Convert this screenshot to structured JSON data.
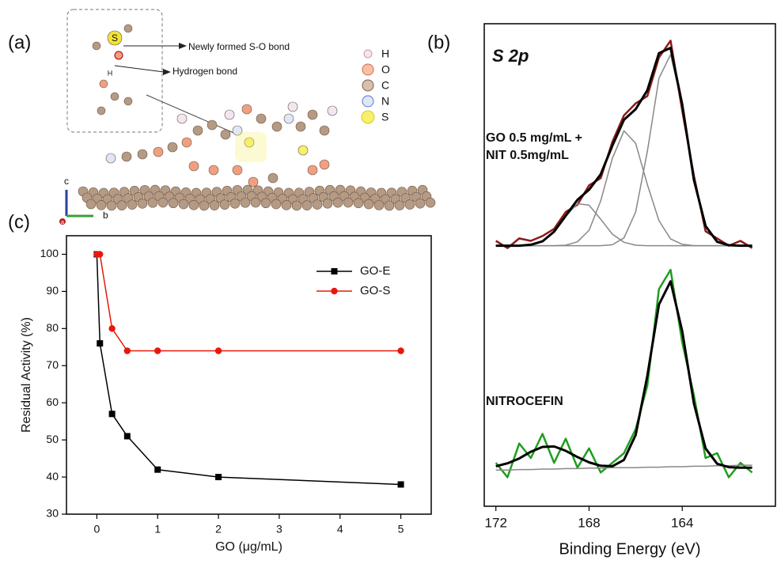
{
  "diagram": {
    "label": "(a)",
    "callouts": [
      "Newly formed S-O bond",
      "Hydrogen bond"
    ],
    "atom_labels": [
      "S",
      "H"
    ],
    "legend": [
      "H",
      "O",
      "C",
      "N",
      "S"
    ],
    "axes": [
      "c",
      "b",
      "a"
    ]
  },
  "chart_data": [
    {
      "type": "line",
      "panel_label": "(b)",
      "title": "S 2p",
      "annotations": [
        "GO 0.5 mg/mL +",
        "NIT 0.5mg/mL",
        "NITROCEFIN"
      ],
      "x_label": "Binding Energy (eV)",
      "x": [
        172,
        171.5,
        171,
        170.5,
        170,
        169.5,
        169,
        168.5,
        168,
        167.5,
        167,
        166.5,
        166,
        165.5,
        165,
        164.5,
        164,
        163.5,
        163,
        162.5,
        162,
        161.5,
        161
      ],
      "series": [
        {
          "color": "#8b1a1a",
          "line_width": 2.5,
          "values": [
            55,
            53.5,
            55.5,
            55,
            56,
            57.5,
            61,
            62.5,
            66.5,
            68,
            75.5,
            81,
            83.5,
            85,
            93,
            96.5,
            82,
            68.5,
            57,
            55.5,
            54,
            55,
            53.5
          ]
        },
        {
          "color": "#888888",
          "line_width": 1.5,
          "values": [
            54,
            54,
            54,
            54,
            54,
            54,
            54,
            54,
            54,
            54,
            54.2,
            55.6,
            61,
            73.5,
            88.7,
            93.6,
            83,
            67.6,
            58.1,
            54.8,
            54.1,
            54,
            54
          ]
        },
        {
          "color": "#888888",
          "line_width": 1.5,
          "values": [
            54,
            54,
            54,
            54,
            54,
            54,
            54.1,
            54.8,
            57.2,
            63.3,
            72.1,
            77.8,
            75.2,
            66.7,
            59.2,
            55.4,
            54.3,
            54,
            54,
            54,
            54,
            54,
            54
          ]
        },
        {
          "color": "#888888",
          "line_width": 1.5,
          "values": [
            54,
            54,
            54,
            54.2,
            54.9,
            56.9,
            60.1,
            62.7,
            62.4,
            59.5,
            56.4,
            54.7,
            54.1,
            54,
            54,
            54,
            54,
            54,
            54,
            54,
            54,
            54,
            54
          ]
        },
        {
          "color": "#000000",
          "line_width": 3,
          "values": [
            54,
            54,
            54,
            54.2,
            54.9,
            56.9,
            60.2,
            63.5,
            65.6,
            68.8,
            74.7,
            80.1,
            82.3,
            86.2,
            93.9,
            95,
            83.3,
            67.6,
            58.1,
            54.8,
            54.1,
            54,
            54
          ]
        },
        {
          "color": "#1f9e1f",
          "line_width": 2.5,
          "values": [
            9,
            6,
            13,
            10,
            15,
            9,
            14,
            8,
            12,
            7,
            9,
            11,
            16,
            25,
            45,
            49,
            34,
            23,
            10,
            11,
            6,
            9,
            7
          ]
        },
        {
          "color": "#888888",
          "line_width": 1.5,
          "values": [
            7.5,
            7.5,
            7.6,
            7.6,
            7.7,
            7.7,
            7.8,
            7.8,
            7.9,
            7.9,
            8,
            8,
            8,
            8.1,
            8.1,
            8.2,
            8.2,
            8.3,
            8.3,
            8.4,
            8.4,
            8.5,
            8.5
          ]
        },
        {
          "color": "#000000",
          "line_width": 3,
          "values": [
            8.3,
            8.9,
            9.9,
            11.3,
            12.3,
            12.4,
            11.5,
            10.2,
            9.1,
            8.4,
            8.3,
            9.6,
            14.8,
            27,
            41.8,
            46.6,
            36.3,
            21.3,
            12,
            8.8,
            8.1,
            8,
            8
          ]
        }
      ],
      "xlim": [
        172.5,
        160
      ],
      "ylim": [
        0,
        100
      ],
      "xticks": [
        172,
        168,
        164
      ]
    },
    {
      "type": "line",
      "panel_label": "(c)",
      "x_label": "GO (μg/mL)",
      "y_label": "Residual Activity (%)",
      "x": [
        0,
        0.05,
        0.25,
        0.5,
        1,
        2,
        5
      ],
      "series": [
        {
          "name": "GO-E",
          "color": "#000000",
          "marker": "square",
          "line_width": 1.5,
          "values": [
            100,
            76,
            57,
            51,
            42,
            40,
            38
          ]
        },
        {
          "name": "GO-S",
          "color": "#e8180c",
          "marker": "circle",
          "line_width": 1.5,
          "values": [
            100,
            100,
            80,
            74,
            74,
            74,
            74
          ]
        }
      ],
      "xlim": [
        -0.5,
        5.5
      ],
      "ylim": [
        30,
        105
      ],
      "xticks": [
        0,
        1,
        2,
        3,
        4,
        5
      ],
      "yticks": [
        30,
        40,
        50,
        60,
        70,
        80,
        90,
        100
      ],
      "legend": "upper right"
    }
  ]
}
